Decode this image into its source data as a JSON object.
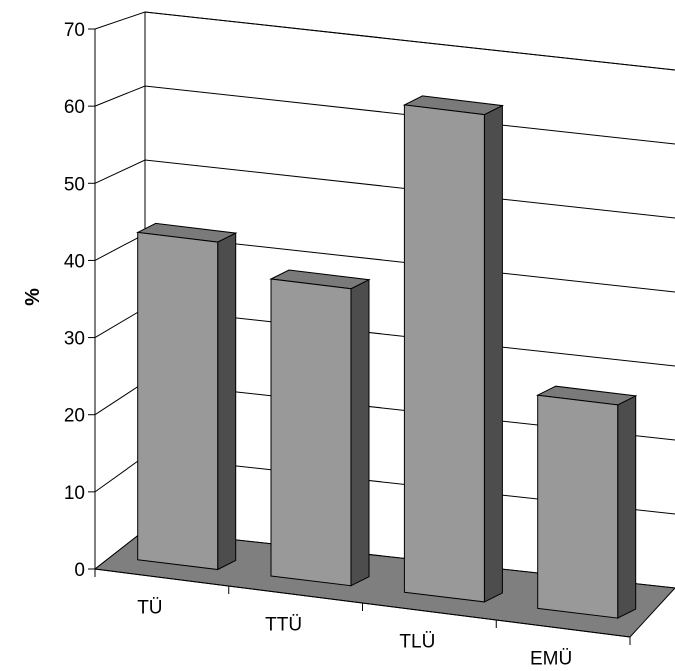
{
  "chart_data": {
    "type": "bar",
    "style": "3d-perspective",
    "categories": [
      "TÜ",
      "TTÜ",
      "TLÜ",
      "EMÜ"
    ],
    "values": [
      43,
      39,
      64,
      28
    ],
    "ylabel": "%",
    "xlabel": "",
    "title": "",
    "yticks": [
      0,
      10,
      20,
      30,
      40,
      50,
      60,
      70
    ],
    "ylim": [
      0,
      70
    ],
    "grid": true,
    "legend": "none",
    "colors": {
      "bar_front": "#999999",
      "bar_side": "#4d4d4d",
      "bar_top": "#7a7a7a",
      "floor": "#7f7f7f",
      "gridline": "#000000"
    }
  }
}
